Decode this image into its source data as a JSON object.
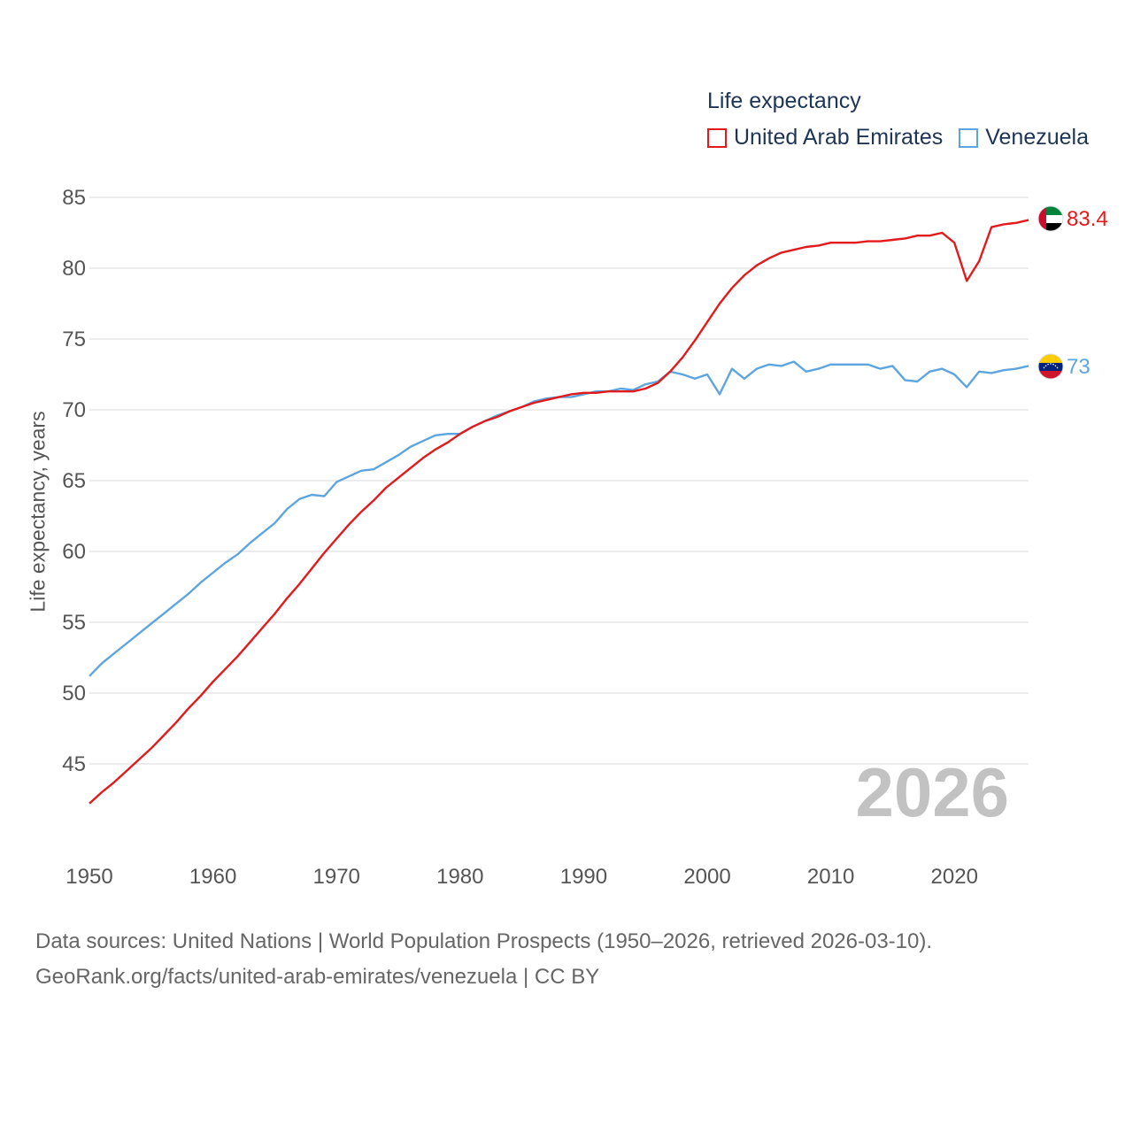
{
  "legend": {
    "title": "Life expectancy",
    "items": [
      {
        "label": "United Arab Emirates",
        "color": "#e31a1c"
      },
      {
        "label": "Venezuela",
        "color": "#5da5e0"
      }
    ]
  },
  "year_label": "2026",
  "sources": {
    "line1": "Data sources: United Nations | World Population Prospects (1950–2026, retrieved 2026-03-10).",
    "line2": "GeoRank.org/facts/united-arab-emirates/venezuela | CC BY"
  },
  "chart_data": {
    "type": "line",
    "title": "Life expectancy",
    "xlabel": "",
    "ylabel": "Life expectancy, years",
    "xlim": [
      1950,
      2026
    ],
    "ylim": [
      41,
      85
    ],
    "grid": true,
    "legend_position": "top-right",
    "x_ticks": [
      1950,
      1960,
      1970,
      1980,
      1990,
      2000,
      2010,
      2020
    ],
    "y_ticks": [
      45,
      50,
      55,
      60,
      65,
      70,
      75,
      80,
      85
    ],
    "x": [
      1950,
      1951,
      1952,
      1953,
      1954,
      1955,
      1956,
      1957,
      1958,
      1959,
      1960,
      1961,
      1962,
      1963,
      1964,
      1965,
      1966,
      1967,
      1968,
      1969,
      1970,
      1971,
      1972,
      1973,
      1974,
      1975,
      1976,
      1977,
      1978,
      1979,
      1980,
      1981,
      1982,
      1983,
      1984,
      1985,
      1986,
      1987,
      1988,
      1989,
      1990,
      1991,
      1992,
      1993,
      1994,
      1995,
      1996,
      1997,
      1998,
      1999,
      2000,
      2001,
      2002,
      2003,
      2004,
      2005,
      2006,
      2007,
      2008,
      2009,
      2010,
      2011,
      2012,
      2013,
      2014,
      2015,
      2016,
      2017,
      2018,
      2019,
      2020,
      2021,
      2022,
      2023,
      2024,
      2025,
      2026
    ],
    "series": [
      {
        "name": "United Arab Emirates",
        "color": "#e31a1c",
        "end_label": "83.4",
        "values": [
          42.2,
          43.0,
          43.7,
          44.5,
          45.3,
          46.1,
          47.0,
          47.9,
          48.9,
          49.8,
          50.8,
          51.7,
          52.6,
          53.6,
          54.6,
          55.6,
          56.7,
          57.7,
          58.8,
          59.9,
          60.9,
          61.9,
          62.8,
          63.6,
          64.5,
          65.2,
          65.9,
          66.6,
          67.2,
          67.7,
          68.3,
          68.8,
          69.2,
          69.5,
          69.9,
          70.2,
          70.5,
          70.7,
          70.9,
          71.1,
          71.2,
          71.2,
          71.3,
          71.3,
          71.3,
          71.5,
          71.9,
          72.7,
          73.7,
          74.9,
          76.2,
          77.5,
          78.6,
          79.5,
          80.2,
          80.7,
          81.1,
          81.3,
          81.5,
          81.6,
          81.8,
          81.8,
          81.8,
          81.9,
          81.9,
          82.0,
          82.1,
          82.3,
          82.3,
          82.5,
          81.8,
          79.1,
          80.5,
          82.9,
          83.1,
          83.2,
          83.4
        ]
      },
      {
        "name": "Venezuela",
        "color": "#5da5e0",
        "end_label": "73",
        "values": [
          51.2,
          52.1,
          52.8,
          53.5,
          54.2,
          54.9,
          55.6,
          56.3,
          57.0,
          57.8,
          58.5,
          59.2,
          59.8,
          60.6,
          61.3,
          62.0,
          63.0,
          63.7,
          64.0,
          63.9,
          64.9,
          65.3,
          65.7,
          65.8,
          66.3,
          66.8,
          67.4,
          67.8,
          68.2,
          68.3,
          68.3,
          68.8,
          69.2,
          69.6,
          69.9,
          70.2,
          70.6,
          70.8,
          70.9,
          70.9,
          71.1,
          71.3,
          71.3,
          71.5,
          71.4,
          71.8,
          72.0,
          72.7,
          72.5,
          72.2,
          72.5,
          71.1,
          72.9,
          72.2,
          72.9,
          73.2,
          73.1,
          73.4,
          72.7,
          72.9,
          73.2,
          73.2,
          73.2,
          73.2,
          72.9,
          73.1,
          72.1,
          72.0,
          72.7,
          72.9,
          72.5,
          71.6,
          72.7,
          72.6,
          72.8,
          72.9,
          73.1
        ]
      }
    ]
  }
}
